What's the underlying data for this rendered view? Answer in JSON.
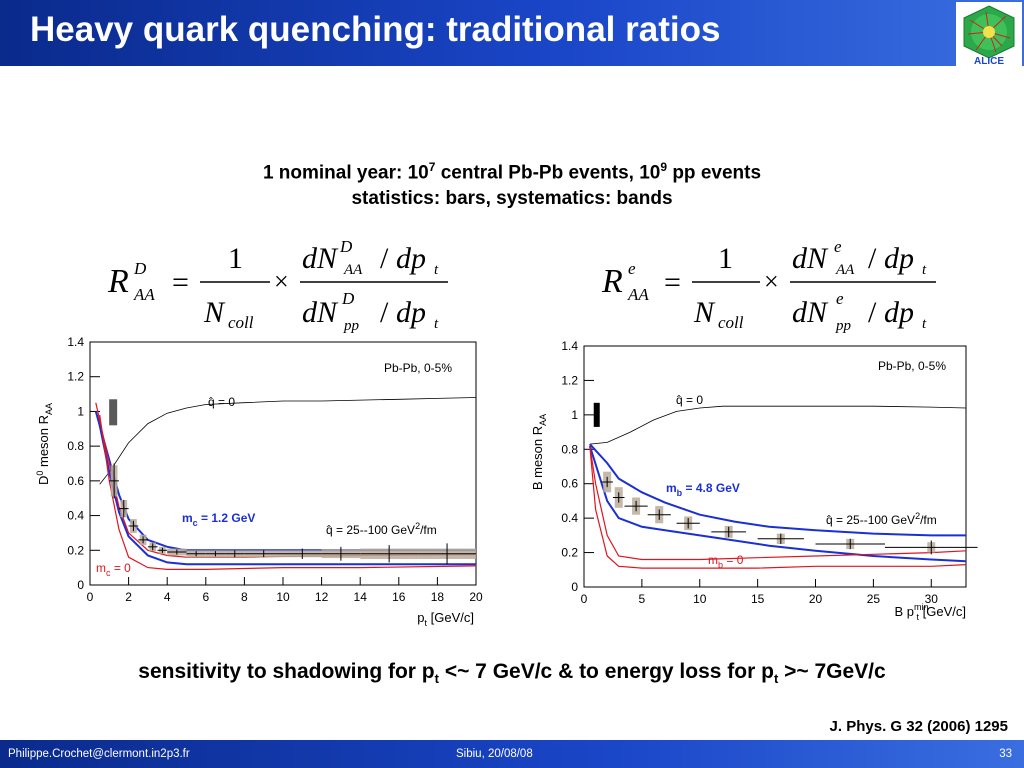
{
  "slide": {
    "title": "Heavy quark quenching: traditional ratios",
    "subtitle_line1": "1 nominal year: 10",
    "subtitle_line1_exp": "7",
    "subtitle_line1_mid": " central Pb-Pb events, 10",
    "subtitle_line1_exp2": "9",
    "subtitle_line1_end": " pp events",
    "subtitle_line2": "statistics: bars, systematics: bands",
    "bottom_note_a": "sensitivity to shadowing for p",
    "bottom_note_sub1": "t",
    "bottom_note_b": " <~ 7 GeV/c & to energy loss for p",
    "bottom_note_sub2": "t",
    "bottom_note_c": " >~ 7GeV/c",
    "reference": "J. Phys. G 32 (2006) 1295",
    "footer": {
      "email": "Philippe.Crochet@clermont.in2p3.fr",
      "date": "Sibiu, 20/08/08",
      "page": "33"
    }
  },
  "formulas": {
    "left": {
      "lhs": "R",
      "lhs_sup": "D",
      "lhs_sub": "AA",
      "eq": "=",
      "one": "1",
      "ncoll": "N",
      "ncoll_sub": "coll",
      "times": "×",
      "num": "dN",
      "num_sup": "D",
      "num_sub": "AA",
      "slash": "/",
      "dpt": "dp",
      "dpt_sub": "t",
      "den_sup": "D",
      "den_sub": "pp"
    },
    "right": {
      "lhs": "R",
      "lhs_sup": "e",
      "lhs_sub": "AA",
      "eq": "=",
      "one": "1",
      "ncoll": "N",
      "ncoll_sub": "coll",
      "times": "×",
      "num": "dN",
      "num_sup": "e",
      "num_sub": "AA",
      "slash": "/",
      "dpt": "dp",
      "dpt_sub": "t",
      "den_sup": "e",
      "den_sub": "pp"
    }
  },
  "colors": {
    "blue": "#1a2fd6",
    "red": "#e0141e",
    "black": "#000000",
    "band": "#b8ab9a",
    "darkband": "#5a5a5a"
  },
  "chart_data": [
    {
      "type": "line",
      "ylabel": "D",
      "ylabel_sup": "0",
      "ylabel_rest": " meson R",
      "ylabel_sub": "AA",
      "xlabel": "p",
      "xlabel_sub": "t",
      "xlabel_rest": " [GeV/c]",
      "xlim": [
        0,
        20
      ],
      "ylim": [
        0,
        1.4
      ],
      "xticks": [
        0,
        2,
        4,
        6,
        8,
        10,
        12,
        14,
        16,
        18,
        20
      ],
      "yticks": [
        "0",
        "0.2",
        "0.4",
        "0.6",
        "0.8",
        "1",
        "1.2",
        "1.4"
      ],
      "system_label": "Pb-Pb,  0-5%",
      "annotations": {
        "q0": "q̂ = 0",
        "qrange": "q̂ = 25--100 GeV",
        "qrange_sup": "2",
        "qrange_end": "/fm",
        "mass_blue": "m",
        "mass_blue_sub": "c",
        "mass_blue_end": " = 1.2 GeV",
        "mass_red": "m",
        "mass_red_sub": "c",
        "mass_red_end": " = 0"
      },
      "norm_box": {
        "x": 1.2,
        "ylow": 0.92,
        "yhigh": 1.07
      },
      "series": [
        {
          "x": [
            0.5,
            1,
            2,
            3,
            4,
            5,
            6,
            8,
            10,
            12,
            14,
            16,
            18,
            20
          ],
          "y": [
            0.58,
            0.65,
            0.82,
            0.93,
            0.99,
            1.02,
            1.04,
            1.05,
            1.06,
            1.06,
            1.065,
            1.07,
            1.075,
            1.08
          ],
          "style": "thin-black"
        },
        {
          "x": [
            0.3,
            1,
            1.5,
            2,
            3,
            4,
            5,
            6,
            8,
            10,
            14,
            20
          ],
          "y": [
            1.0,
            0.72,
            0.52,
            0.38,
            0.26,
            0.22,
            0.2,
            0.2,
            0.2,
            0.2,
            0.2,
            0.2
          ],
          "style": "blue"
        },
        {
          "x": [
            0.5,
            1,
            1.5,
            2,
            3,
            4,
            5,
            6,
            8,
            10,
            14,
            20
          ],
          "y": [
            0.92,
            0.65,
            0.42,
            0.28,
            0.17,
            0.13,
            0.12,
            0.12,
            0.12,
            0.12,
            0.12,
            0.12
          ],
          "style": "blue"
        },
        {
          "x": [
            0.3,
            1,
            1.5,
            2,
            3,
            4,
            5,
            6,
            8,
            10,
            14,
            20
          ],
          "y": [
            1.05,
            0.7,
            0.45,
            0.3,
            0.2,
            0.17,
            0.16,
            0.16,
            0.16,
            0.165,
            0.17,
            0.175
          ],
          "style": "red"
        },
        {
          "x": [
            0.5,
            1,
            1.5,
            2,
            3,
            4,
            6,
            10,
            14,
            20
          ],
          "y": [
            0.98,
            0.6,
            0.32,
            0.16,
            0.1,
            0.09,
            0.09,
            0.1,
            0.1,
            0.11
          ],
          "style": "red"
        }
      ],
      "points": {
        "x": [
          1.25,
          1.75,
          2.25,
          2.75,
          3.25,
          3.75,
          4.5,
          5.5,
          6.5,
          7.5,
          9,
          11,
          13,
          15.5,
          18.5
        ],
        "y": [
          0.6,
          0.44,
          0.34,
          0.26,
          0.22,
          0.2,
          0.19,
          0.18,
          0.18,
          0.18,
          0.18,
          0.18,
          0.18,
          0.18,
          0.18
        ],
        "xerr": [
          0.25,
          0.25,
          0.25,
          0.25,
          0.25,
          0.25,
          0.5,
          0.5,
          0.5,
          0.5,
          1,
          1,
          1,
          1.5,
          1.5
        ],
        "yerr": [
          0.1,
          0.05,
          0.03,
          0.02,
          0.02,
          0.015,
          0.015,
          0.015,
          0.015,
          0.02,
          0.02,
          0.03,
          0.04,
          0.05,
          0.06
        ],
        "sys": [
          0.09,
          0.05,
          0.04,
          0.03,
          0.025,
          0.02,
          0.02,
          0.02,
          0.02,
          0.02,
          0.02,
          0.02,
          0.025,
          0.03,
          0.03
        ]
      }
    },
    {
      "type": "line",
      "ylabel": "B meson R",
      "ylabel_sub": "AA",
      "xlabel": "B p",
      "xlabel_sup": "min",
      "xlabel_sub": "t",
      "xlabel_rest": " [GeV/c]",
      "xlim": [
        0,
        33
      ],
      "ylim": [
        0,
        1.4
      ],
      "xticks": [
        0,
        5,
        10,
        15,
        20,
        25,
        30
      ],
      "yticks": [
        "0",
        "0.2",
        "0.4",
        "0.6",
        "0.8",
        "1",
        "1.2",
        "1.4"
      ],
      "system_label": "Pb-Pb,  0-5%",
      "annotations": {
        "q0": "q̂ = 0",
        "qrange": "q̂ = 25--100 GeV",
        "qrange_sup": "2",
        "qrange_end": "/fm",
        "mass_blue": "m",
        "mass_blue_sub": "b",
        "mass_blue_end": " = 4.8 GeV",
        "mass_red": "m",
        "mass_red_sub": "b",
        "mass_red_end": " = 0"
      },
      "norm_box": {
        "x": 1.1,
        "ylow": 0.93,
        "yhigh": 1.07
      },
      "series": [
        {
          "x": [
            0.5,
            2,
            4,
            6,
            8,
            10,
            12,
            15,
            20,
            25,
            30,
            33
          ],
          "y": [
            0.83,
            0.84,
            0.9,
            0.97,
            1.02,
            1.04,
            1.05,
            1.05,
            1.05,
            1.05,
            1.045,
            1.04
          ],
          "style": "thin-black"
        },
        {
          "x": [
            0.5,
            2,
            3,
            5,
            7,
            10,
            13,
            16,
            20,
            25,
            30,
            33
          ],
          "y": [
            0.83,
            0.72,
            0.63,
            0.55,
            0.49,
            0.42,
            0.38,
            0.35,
            0.33,
            0.31,
            0.3,
            0.3
          ],
          "style": "blue"
        },
        {
          "x": [
            0.5,
            2,
            3,
            5,
            7,
            10,
            13,
            16,
            20,
            25,
            30,
            33
          ],
          "y": [
            0.82,
            0.5,
            0.4,
            0.35,
            0.33,
            0.3,
            0.27,
            0.24,
            0.21,
            0.18,
            0.16,
            0.15
          ],
          "style": "blue"
        },
        {
          "x": [
            0.5,
            1,
            2,
            3,
            5,
            10,
            15,
            20,
            25,
            30,
            33
          ],
          "y": [
            0.82,
            0.6,
            0.3,
            0.18,
            0.16,
            0.16,
            0.17,
            0.18,
            0.19,
            0.2,
            0.21
          ],
          "style": "red"
        },
        {
          "x": [
            0.5,
            1,
            2,
            3,
            5,
            10,
            15,
            20,
            25,
            30,
            33
          ],
          "y": [
            0.82,
            0.45,
            0.18,
            0.12,
            0.11,
            0.11,
            0.11,
            0.12,
            0.12,
            0.12,
            0.13
          ],
          "style": "red"
        }
      ],
      "points": {
        "x": [
          2,
          3,
          4.5,
          6.5,
          9,
          12.5,
          17,
          23,
          30
        ],
        "y": [
          0.61,
          0.52,
          0.47,
          0.42,
          0.37,
          0.32,
          0.28,
          0.25,
          0.23
        ],
        "xerr": [
          0.5,
          0.5,
          1,
          1,
          1,
          1.5,
          2,
          3,
          4
        ],
        "yerr": [
          0.03,
          0.03,
          0.03,
          0.03,
          0.03,
          0.03,
          0.03,
          0.03,
          0.04
        ],
        "sys": [
          0.06,
          0.06,
          0.05,
          0.05,
          0.04,
          0.035,
          0.03,
          0.03,
          0.03
        ]
      }
    }
  ]
}
